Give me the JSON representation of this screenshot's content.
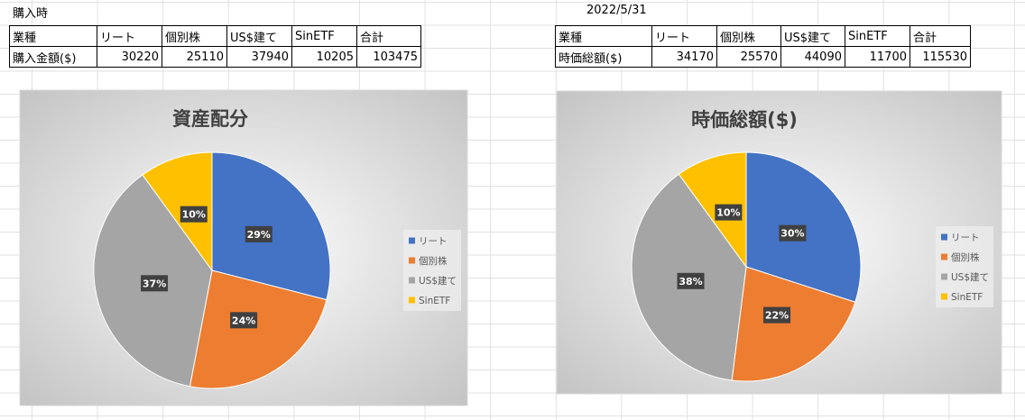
{
  "tables": [
    {
      "caption": "購入時",
      "rows": [
        [
          "業種",
          "リート",
          "個別株",
          "US$建て",
          "SinETF",
          "合計"
        ],
        [
          "購入金額($)",
          30220,
          25110,
          37940,
          10205,
          103475
        ]
      ]
    },
    {
      "caption": "2022/5/31",
      "rows": [
        [
          "業種",
          "リート",
          "個別株",
          "US$建て",
          "SinETF",
          "合計"
        ],
        [
          "時価総額($)",
          34170,
          25570,
          44090,
          11700,
          115530
        ]
      ]
    }
  ],
  "chart_data": [
    {
      "type": "pie",
      "title": "資産配分",
      "categories": [
        "リート",
        "個別株",
        "US$建て",
        "SinETF"
      ],
      "values": [
        29,
        24,
        37,
        10
      ],
      "value_labels": [
        "29%",
        "24%",
        "37%",
        "10%"
      ],
      "colors": [
        "#4472c4",
        "#ed7d31",
        "#a5a5a5",
        "#ffc000"
      ],
      "legend": "right"
    },
    {
      "type": "pie",
      "title": "時価総額($)",
      "categories": [
        "リート",
        "個別株",
        "US$建て",
        "SinETF"
      ],
      "values": [
        30,
        22,
        38,
        10
      ],
      "value_labels": [
        "30%",
        "22%",
        "38%",
        "10%"
      ],
      "colors": [
        "#4472c4",
        "#ed7d31",
        "#a5a5a5",
        "#ffc000"
      ],
      "legend": "right"
    }
  ]
}
